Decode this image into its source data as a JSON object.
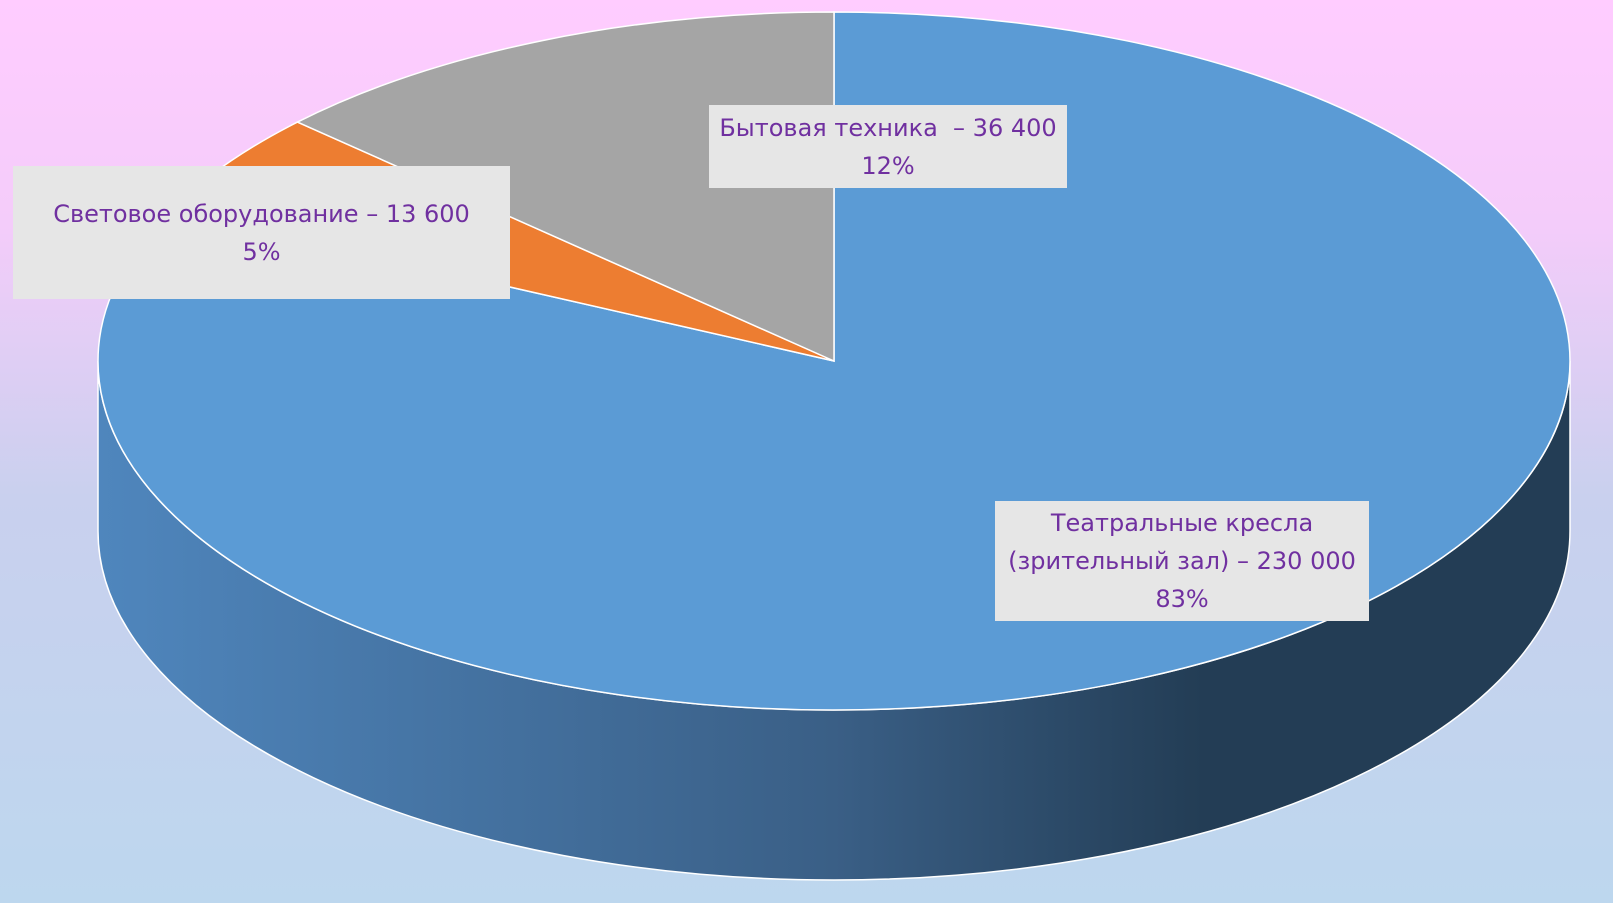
{
  "chart_data": {
    "type": "pie",
    "categories": [
      "Театральные кресла (зрительный зал)",
      "Световое оборудование",
      "Бытовая техника "
    ],
    "values": [
      230000,
      13600,
      36400
    ],
    "value_labels": [
      "– 230 000",
      "– 13 600",
      " – 36 400"
    ],
    "percentages": [
      83,
      5,
      12
    ],
    "percentage_labels": [
      "83%",
      "5%",
      "12%"
    ],
    "colors": [
      "#5b9bd5",
      "#ed7d31",
      "#a5a5a5"
    ]
  }
}
